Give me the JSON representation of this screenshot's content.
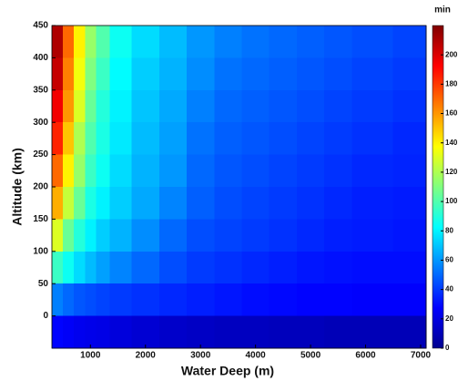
{
  "chart_data": {
    "type": "heatmap",
    "xlabel": "Water Deep (m)",
    "ylabel": "Altitude (km)",
    "colorbar_label": "min",
    "x": [
      400,
      600,
      800,
      1000,
      1200,
      1500,
      2000,
      2500,
      3000,
      3500,
      4000,
      4500,
      5000,
      5500,
      6000,
      7000
    ],
    "y": [
      425,
      375,
      325,
      275,
      225,
      175,
      125,
      75,
      25,
      -25
    ],
    "z": [
      [
        210,
        170,
        140,
        115,
        100,
        85,
        75,
        68,
        60,
        55,
        52,
        50,
        48,
        46,
        44,
        42
      ],
      [
        205,
        165,
        135,
        110,
        95,
        82,
        72,
        66,
        58,
        52,
        50,
        48,
        46,
        44,
        42,
        40
      ],
      [
        195,
        160,
        130,
        105,
        90,
        80,
        70,
        64,
        55,
        50,
        48,
        46,
        44,
        42,
        40,
        38
      ],
      [
        185,
        150,
        120,
        100,
        88,
        78,
        68,
        62,
        52,
        48,
        46,
        44,
        42,
        40,
        38,
        36
      ],
      [
        170,
        140,
        115,
        95,
        85,
        75,
        66,
        60,
        50,
        46,
        44,
        42,
        40,
        38,
        36,
        35
      ],
      [
        155,
        125,
        105,
        88,
        80,
        72,
        64,
        56,
        48,
        44,
        42,
        40,
        38,
        36,
        34,
        33
      ],
      [
        130,
        105,
        90,
        80,
        72,
        66,
        58,
        50,
        44,
        42,
        40,
        38,
        36,
        34,
        33,
        32
      ],
      [
        95,
        85,
        75,
        68,
        62,
        56,
        50,
        44,
        40,
        38,
        36,
        34,
        32,
        31,
        30,
        30
      ],
      [
        55,
        50,
        46,
        44,
        42,
        40,
        38,
        36,
        34,
        32,
        30,
        29,
        28,
        28,
        27,
        27
      ],
      [
        28,
        26,
        24,
        23,
        22,
        20,
        18,
        16,
        15,
        14,
        14,
        13,
        13,
        12,
        12,
        12
      ]
    ],
    "colormap": "jet",
    "xlim": [
      300,
      7100
    ],
    "xticks": [
      1000,
      2000,
      3000,
      4000,
      5000,
      6000,
      7000
    ],
    "ylim": [
      -50,
      450
    ],
    "yticks": [
      0,
      50,
      100,
      150,
      200,
      250,
      300,
      350,
      400,
      450
    ],
    "clim": [
      0,
      220
    ],
    "cticks": [
      0,
      20,
      40,
      60,
      80,
      100,
      120,
      140,
      160,
      180,
      200
    ]
  }
}
